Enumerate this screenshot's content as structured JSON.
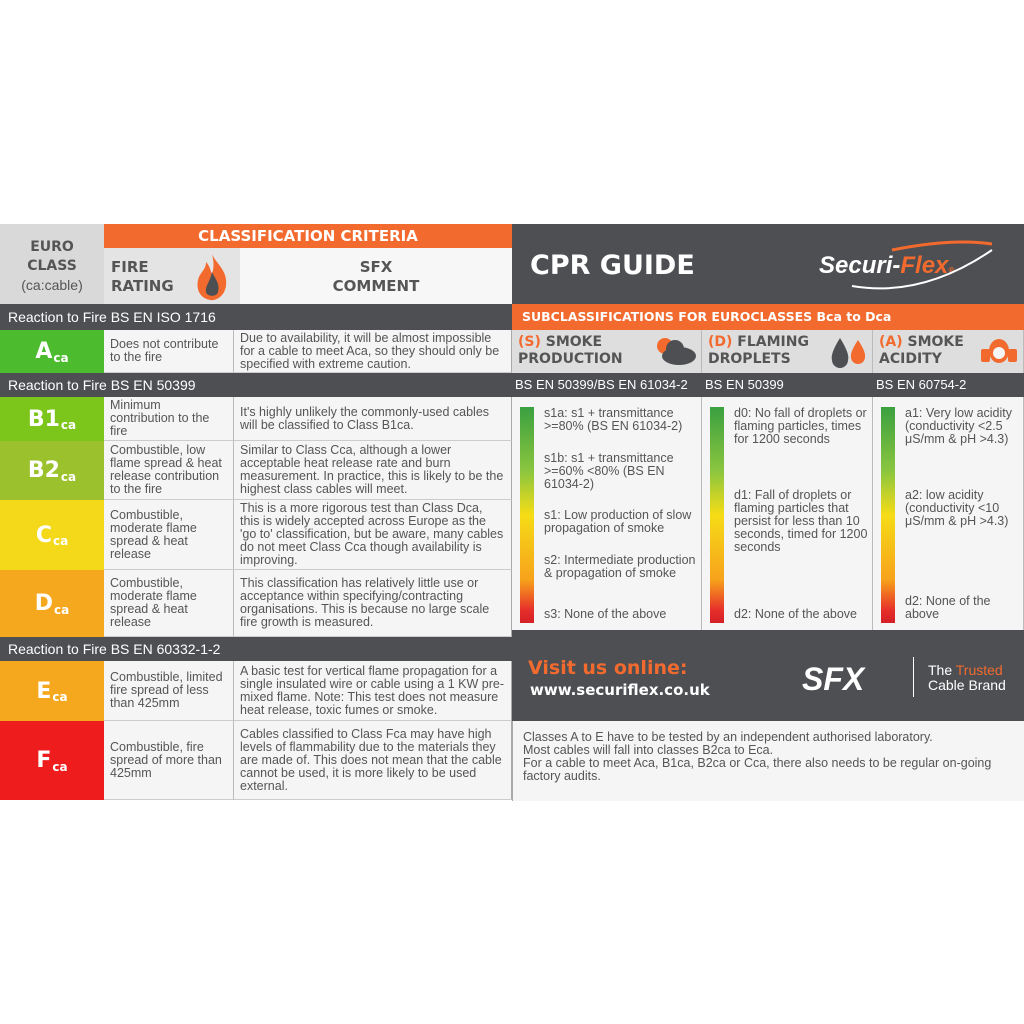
{
  "header": {
    "euro_class": "EURO CLASS",
    "euro_class_sub": "(ca:cable)",
    "criteria": "CLASSIFICATION CRITERIA",
    "fire_rating": "FIRE RATING",
    "sfx_comment": "SFX COMMENT",
    "title": "CPR GUIDE",
    "brand_logo": "Securi-Flex"
  },
  "bands": {
    "iso1716": "Reaction to Fire BS EN ISO 1716",
    "en50399": "Reaction to Fire BS EN 50399",
    "en60332": "Reaction to Fire BS EN 60332-1-2"
  },
  "classes": [
    {
      "label": "A",
      "sub": "ca",
      "color": "#4cbb2e",
      "rating": "Does not contribute to the fire",
      "comment": "Due to availability, it will be almost impossible for a cable to meet Aca, so they should only be specified with extreme caution."
    },
    {
      "label": "B1",
      "sub": "ca",
      "color": "#7cc51b",
      "rating": "Minimum contribution to the fire",
      "comment": "It's highly unlikely the commonly-used cables will be classified to Class B1ca."
    },
    {
      "label": "B2",
      "sub": "ca",
      "color": "#9bc22c",
      "rating": "Combustible, low flame spread & heat release contribution to the fire",
      "comment": "Similar to Class Cca, although a lower acceptable heat release rate and burn measurement. In practice, this is likely to be the highest class cables will meet."
    },
    {
      "label": "C",
      "sub": "ca",
      "color": "#f4d81a",
      "rating": "Combustible, moderate flame spread & heat release",
      "comment": "This is a more rigorous test than Class Dca, this is widely accepted across Europe as the 'go to' classification, but be aware, many cables do not meet Class Cca though availability is improving."
    },
    {
      "label": "D",
      "sub": "ca",
      "color": "#f5a81d",
      "rating": "Combustible, moderate flame spread & heat release",
      "comment": "This classification has relatively little use or acceptance within specifying/contracting organisations. This is because no large scale fire growth is measured."
    },
    {
      "label": "E",
      "sub": "ca",
      "color": "#f5a81d",
      "rating": "Combustible, limited fire spread of less than 425mm",
      "comment": "A basic test for vertical flame propagation for a single insulated wire or cable using a 1 KW pre-mixed flame. Note: This test does not measure heat release, toxic fumes or smoke."
    },
    {
      "label": "F",
      "sub": "ca",
      "color": "#ee1c1c",
      "rating": "Combustible, fire spread of more than 425mm",
      "comment": "Cables classified to Class Fca may have high levels of flammability due to the materials they are made of. This does not mean that the cable cannot be used, it is more likely to be used external."
    }
  ],
  "subclass": {
    "title": "SUBCLASSIFICATIONS FOR EUROCLASSES Bca to Dca",
    "columns": [
      {
        "code": "(S)",
        "name1": "SMOKE",
        "name2": "PRODUCTION",
        "icon": "cloud-icon",
        "standard": "BS EN 50399/BS EN 61034-2",
        "items": [
          "s1a: s1 + transmittance >=80% (BS EN 61034-2)",
          "s1b: s1 + transmittance >=60% <80% (BS EN 61034-2)",
          "s1: Low production of slow propagation of smoke",
          "s2: Intermediate production & propagation of smoke",
          "s3: None of the above"
        ]
      },
      {
        "code": "(D)",
        "name1": "FLAMING",
        "name2": "DROPLETS",
        "icon": "droplets-icon",
        "standard": "BS EN 50399",
        "items": [
          "d0: No fall of droplets or flaming particles, times for 1200 seconds",
          "d1: Fall of droplets or flaming particles that persist for less than 10 seconds, timed for 1200 seconds",
          "d2: None of the above"
        ]
      },
      {
        "code": "(A)",
        "name1": "SMOKE",
        "name2": "ACIDITY",
        "icon": "gas-mask-icon",
        "standard": "BS EN 60754-2",
        "items": [
          "a1: Very low acidity (conductivity <2.5 μS/mm & pH >4.3)",
          "a2: low acidity (conductivity <10 μS/mm & pH >4.3)",
          "d2: None of the above"
        ]
      }
    ]
  },
  "promo": {
    "visit": "Visit us online:",
    "url": "www.securiflex.co.uk",
    "logo": "SFX",
    "tag1": "The",
    "tag2": "Trusted",
    "tag3": "Cable Brand"
  },
  "notes": [
    "Classes A to E have to be tested by an independent authorised laboratory.",
    "Most cables will fall into classes B2ca to Eca.",
    "For a cable to meet Aca, B1ca, B2ca or Cca, there also needs to be regular on-going factory audits."
  ],
  "colors": {
    "orange": "#f26a2e",
    "dark": "#4e4f53"
  }
}
